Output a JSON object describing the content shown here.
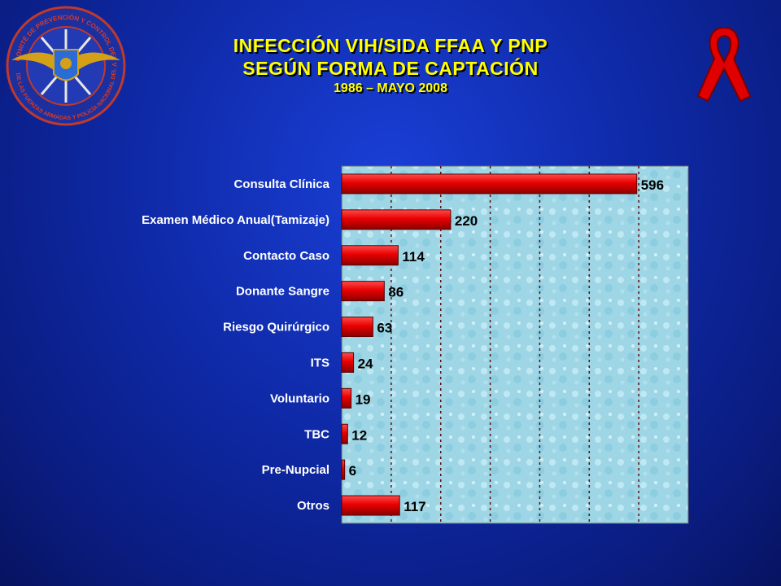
{
  "header": {
    "title_line1": "INFECCIÓN VIH/SIDA  FFAA Y PNP",
    "title_line2": "SEGÚN FORMA DE CAPTACIÓN",
    "title_line3": "1986 – MAYO 2008"
  },
  "emblem": {
    "icon": "military-emblem-icon",
    "ring_text_top": "COMITÉ DE PREVENCIÓN Y CONTROL DEL VIH/SIDA",
    "ring_text_bottom": "DE LAS FUERZAS ARMADAS Y POLICÍA NACIONAL DEL PERÚ"
  },
  "ribbon": {
    "icon": "red-ribbon-icon",
    "color": "#e00000"
  },
  "colors": {
    "background": "#0f2aa8",
    "title": "#ffff00",
    "bar": "#e80000",
    "plot_bg": "#9fd6e6"
  },
  "chart_data": {
    "type": "bar",
    "orientation": "horizontal",
    "categories": [
      "Consulta Clínica",
      "Examen Médico Anual(Tamizaje)",
      "Contacto Caso",
      "Donante Sangre",
      "Riesgo Quirúrgico",
      "ITS",
      "Voluntario",
      "TBC",
      "Pre-Nupcial",
      "Otros"
    ],
    "values": [
      596,
      220,
      114,
      86,
      63,
      24,
      19,
      12,
      6,
      117
    ],
    "data_labels": [
      "596",
      "220",
      "114",
      "86",
      "63",
      "24",
      "19",
      "12",
      "6",
      "117"
    ],
    "xlim": [
      0,
      700
    ],
    "grid": "vertical dotted",
    "legend": "none"
  }
}
